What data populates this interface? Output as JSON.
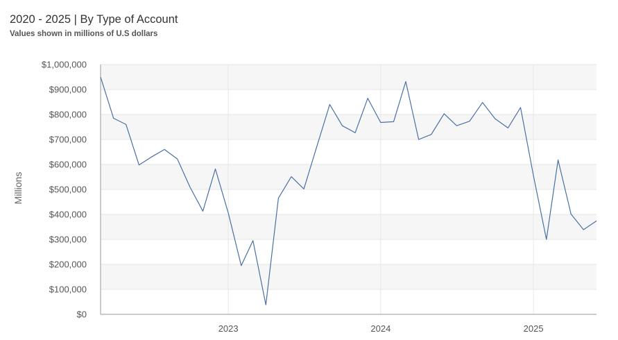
{
  "chart_data": {
    "type": "line",
    "title": "2020 - 2025 | By Type of Account",
    "subtitle": "Values shown in millions of U.S dollars",
    "ylabel": "Millions",
    "xlabel": "",
    "ylim": [
      0,
      1000000
    ],
    "xlim": [
      "2022-03-01",
      "2025-06-01"
    ],
    "y_ticks": [
      0,
      100000,
      200000,
      300000,
      400000,
      500000,
      600000,
      700000,
      800000,
      900000,
      1000000
    ],
    "y_tick_labels": [
      "$0",
      "$100,000",
      "$200,000",
      "$300,000",
      "$400,000",
      "$500,000",
      "$600,000",
      "$700,000",
      "$800,000",
      "$900,000",
      "$1,000,000"
    ],
    "x_ticks": [
      "2023-01-01",
      "2024-01-01",
      "2025-01-01"
    ],
    "x_tick_labels": [
      "2023",
      "2024",
      "2025"
    ],
    "grid": true,
    "line_color": "#4a6fa5",
    "series": [
      {
        "x": [
          "2022-03-01",
          "2022-04-01",
          "2022-05-01",
          "2022-06-01",
          "2022-07-01",
          "2022-08-01",
          "2022-09-01",
          "2022-10-01",
          "2022-11-01",
          "2022-12-01",
          "2023-01-01",
          "2023-02-01",
          "2023-03-01",
          "2023-04-01",
          "2023-05-01",
          "2023-06-01",
          "2023-07-01",
          "2023-08-01",
          "2023-09-01",
          "2023-10-01",
          "2023-11-01",
          "2023-12-01",
          "2024-01-01",
          "2024-02-01",
          "2024-03-01",
          "2024-04-01",
          "2024-05-01",
          "2024-06-01",
          "2024-07-01",
          "2024-08-01",
          "2024-09-01",
          "2024-10-01",
          "2024-11-01",
          "2024-12-01",
          "2025-01-01",
          "2025-02-01",
          "2025-03-01",
          "2025-04-01",
          "2025-05-01",
          "2025-06-01"
        ],
        "values": [
          950000,
          785000,
          760000,
          598000,
          630000,
          660000,
          622000,
          510000,
          413000,
          582000,
          405000,
          195000,
          295000,
          38000,
          465000,
          551000,
          502000,
          672000,
          840000,
          755000,
          727000,
          865000,
          768000,
          771000,
          932000,
          700000,
          720000,
          803000,
          755000,
          773000,
          848000,
          783000,
          746000,
          828000,
          555000,
          300000,
          618000,
          401000,
          339000,
          374000
        ]
      }
    ]
  }
}
